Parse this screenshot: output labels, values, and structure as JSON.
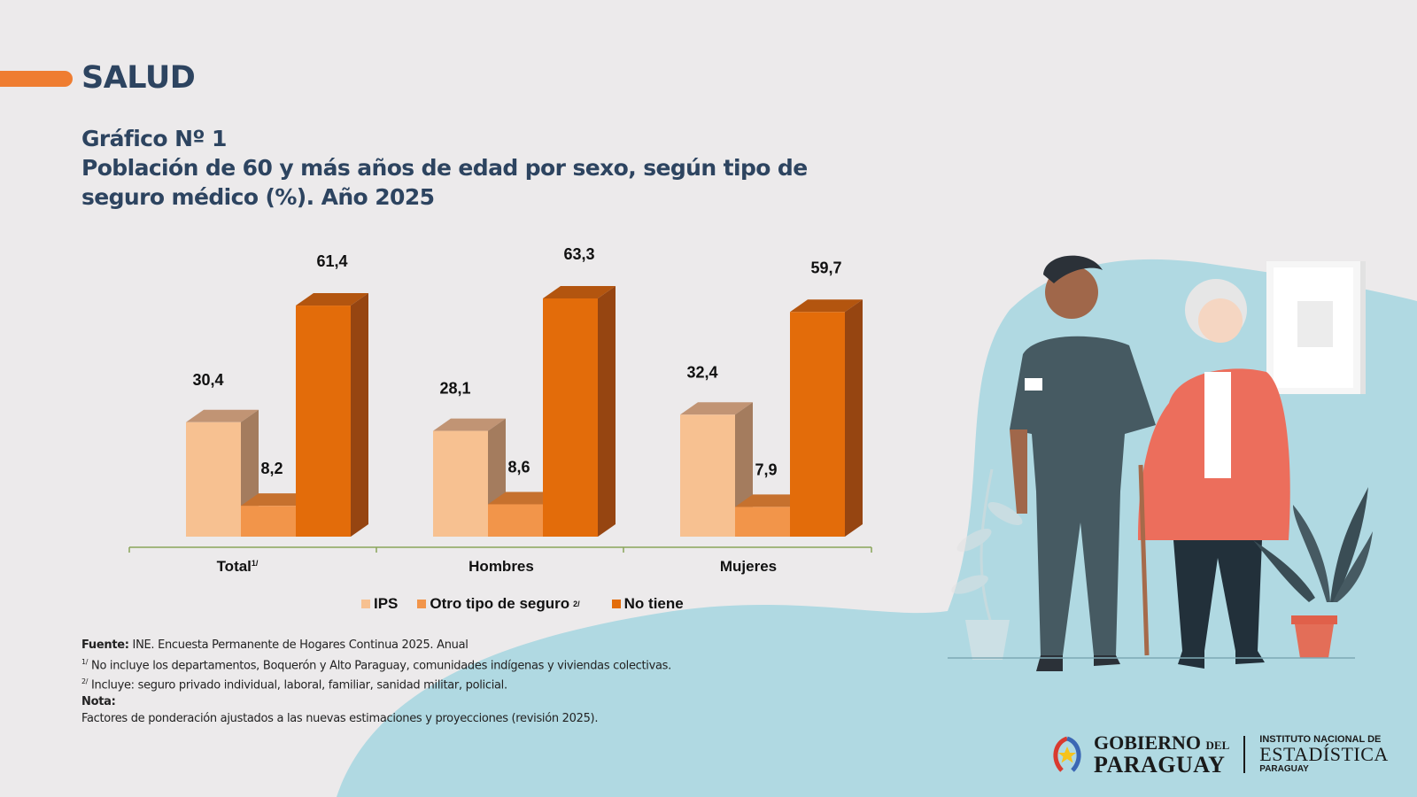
{
  "section": {
    "title": "SALUD"
  },
  "header": {
    "chart_number": "Gráfico Nº 1",
    "title_line1": "Población  de 60 y más años de edad por sexo, según tipo de",
    "title_line2": "seguro médico (%). Año 2025"
  },
  "colors": {
    "accent": "#ef7d31",
    "title": "#2d4460",
    "ips": "#f7c191",
    "otro": "#f2954a",
    "no_tiene": "#e36c0a",
    "blob": "#b0d9e2"
  },
  "chart_data": {
    "type": "bar",
    "style": "3d-clustered-column",
    "title": "Población de 60 y más años de edad por sexo, según tipo de seguro médico (%). Año 2025",
    "categories": [
      "Total",
      "Hombres",
      "Mujeres"
    ],
    "category_superscripts": [
      "1/",
      "",
      ""
    ],
    "series": [
      {
        "name": "IPS",
        "superscript": "",
        "values": [
          30.4,
          28.1,
          32.4
        ],
        "labels": [
          "30,4",
          "28,1",
          "32,4"
        ]
      },
      {
        "name": "Otro tipo de seguro",
        "superscript": "2/",
        "values": [
          8.2,
          8.6,
          7.9
        ],
        "labels": [
          "8,2",
          "8,6",
          "7,9"
        ]
      },
      {
        "name": "No tiene",
        "superscript": "",
        "values": [
          61.4,
          63.3,
          59.7
        ],
        "labels": [
          "61,4",
          "63,3",
          "59,7"
        ]
      }
    ],
    "xlabel": "",
    "ylabel": "",
    "ylim": [
      0,
      70
    ],
    "grid": false,
    "legend": "bottom"
  },
  "notes": {
    "source_label": "Fuente:",
    "source_text": " INE. Encuesta Permanente de Hogares Continua 2025. Anual",
    "note1_sup": "1/",
    "note1_text": " No incluye los departamentos, Boquerón y Alto Paraguay, comunidades indígenas y viviendas colectivas.",
    "note2_sup": "2/",
    "note2_text": " Incluye: seguro privado individual, laboral, familiar, sanidad militar, policial.",
    "nota_label": "Nota:",
    "nota_text": "Factores de ponderación ajustados a las nuevas estimaciones y proyecciones (revisión 2025)."
  },
  "logo": {
    "gob_line1": "GOBIERNO",
    "gob_del": "DEL",
    "gob_line2": "PARAGUAY",
    "ine_line1": "INSTITUTO NACIONAL DE",
    "ine_line2": "ESTADÍSTICA",
    "ine_line3": "PARAGUAY"
  }
}
